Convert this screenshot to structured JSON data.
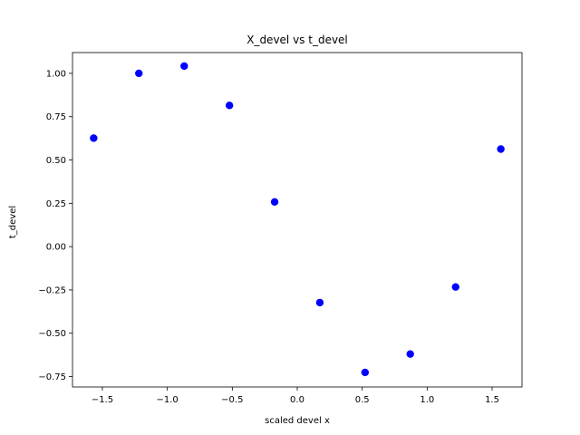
{
  "chart_data": {
    "type": "scatter",
    "title": "X_devel vs t_devel",
    "xlabel": "scaled devel x",
    "ylabel": "t_devel",
    "xlim": [
      -1.73,
      1.73
    ],
    "ylim": [
      -0.81,
      1.12
    ],
    "xticks": [
      -1.5,
      -1.0,
      -0.5,
      0.0,
      0.5,
      1.0,
      1.5
    ],
    "xtick_labels": [
      "−1.5",
      "−1.0",
      "−0.5",
      "0.0",
      "0.5",
      "1.0",
      "1.5"
    ],
    "yticks": [
      -0.75,
      -0.5,
      -0.25,
      0.0,
      0.25,
      0.5,
      0.75,
      1.0
    ],
    "ytick_labels": [
      "−0.75",
      "−0.50",
      "−0.25",
      "0.00",
      "0.25",
      "0.50",
      "0.75",
      "1.00"
    ],
    "grid": false,
    "marker_color": "#0000ff",
    "points": [
      {
        "x": -1.567,
        "y": 0.626
      },
      {
        "x": -1.219,
        "y": 1.0
      },
      {
        "x": -0.87,
        "y": 1.042
      },
      {
        "x": -0.522,
        "y": 0.815
      },
      {
        "x": -0.174,
        "y": 0.258
      },
      {
        "x": 0.174,
        "y": -0.323
      },
      {
        "x": 0.522,
        "y": -0.726
      },
      {
        "x": 0.87,
        "y": -0.62
      },
      {
        "x": 1.219,
        "y": -0.233
      },
      {
        "x": 1.567,
        "y": 0.563
      }
    ]
  }
}
